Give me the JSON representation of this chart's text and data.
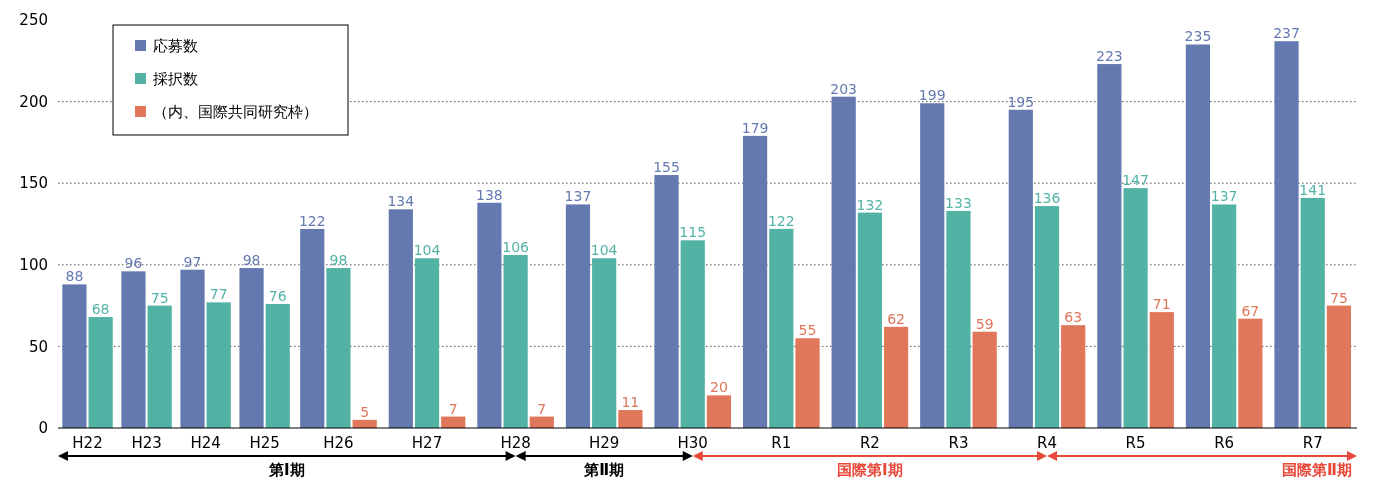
{
  "chart_data": {
    "type": "bar",
    "categories": [
      "H22",
      "H23",
      "H24",
      "H25",
      "H26",
      "H27",
      "H28",
      "H29",
      "H30",
      "R1",
      "R2",
      "R3",
      "R4",
      "R5",
      "R6",
      "R7"
    ],
    "series": [
      {
        "name": "応募数",
        "color": "#6479b0",
        "values": [
          88,
          96,
          97,
          98,
          122,
          134,
          138,
          137,
          155,
          179,
          203,
          199,
          195,
          223,
          235,
          237
        ]
      },
      {
        "name": "採択数",
        "color": "#52b3a5",
        "values": [
          68,
          75,
          77,
          76,
          98,
          104,
          106,
          104,
          115,
          122,
          132,
          133,
          136,
          147,
          137,
          141
        ]
      },
      {
        "name": "（内、国際共同研究枠）",
        "color": "#e0765a",
        "values": [
          null,
          null,
          null,
          null,
          5,
          7,
          7,
          11,
          20,
          55,
          62,
          59,
          63,
          71,
          67,
          75
        ]
      }
    ],
    "ylim": [
      0,
      250
    ],
    "yticks": [
      0,
      50,
      100,
      150,
      200,
      250
    ],
    "grid": "y",
    "legend": "top left",
    "data_labels": true,
    "annotations": [
      "第Ⅰ期",
      "第Ⅱ期",
      "国際第Ⅰ期",
      "国際第Ⅱ期"
    ]
  }
}
